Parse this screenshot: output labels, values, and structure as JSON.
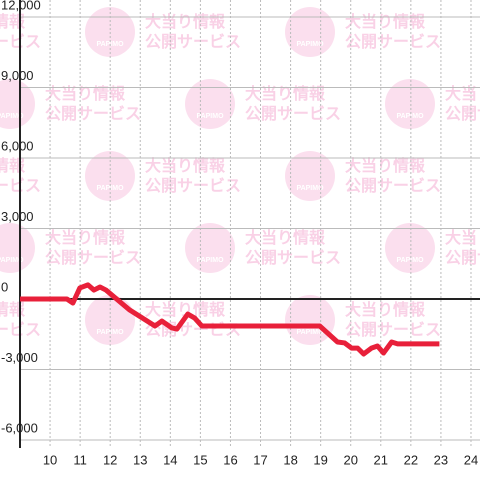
{
  "chart_data": {
    "type": "line",
    "watermark": {
      "logo": "PAPIMO",
      "line1": "大当り情報",
      "line2": "公開サービス"
    },
    "x": [
      9.0,
      10.56,
      10.76,
      10.99,
      11.26,
      11.46,
      11.66,
      11.86,
      12.65,
      13.49,
      13.72,
      14.05,
      14.22,
      14.58,
      14.81,
      15.05,
      15.31,
      18.97,
      19.56,
      19.8,
      20.03,
      20.23,
      20.43,
      20.69,
      20.89,
      21.09,
      21.36,
      21.56,
      22.95
    ],
    "series": [
      {
        "color": "#e8203a",
        "values": [
          0,
          0,
          -170,
          470,
          600,
          380,
          510,
          380,
          -470,
          -1150,
          -940,
          -1230,
          -1280,
          -640,
          -810,
          -1150,
          -1150,
          -1150,
          -1830,
          -1870,
          -2090,
          -2090,
          -2340,
          -2090,
          -2000,
          -2300,
          -1830,
          -1910,
          -1910
        ]
      }
    ],
    "xlim": [
      9,
      24.3
    ],
    "xticks": [
      10,
      11,
      12,
      13,
      14,
      15,
      16,
      17,
      18,
      19,
      20,
      21,
      22,
      23,
      24
    ],
    "ylim": [
      -6000,
      12000
    ],
    "yticks": [
      {
        "value": -6000,
        "label": "-6,000"
      },
      {
        "value": -3000,
        "label": "-3,000"
      },
      0,
      {
        "value": 3000,
        "label": "3,000"
      },
      {
        "value": 6000,
        "label": "6,000"
      },
      {
        "value": 9000,
        "label": "9,000"
      },
      {
        "value": 12000,
        "label": "12,000"
      }
    ],
    "grid": true
  }
}
